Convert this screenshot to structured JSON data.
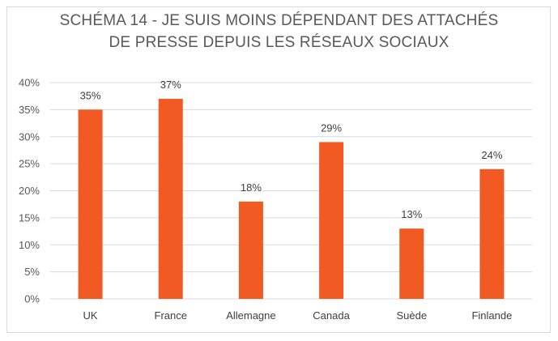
{
  "chart_data": {
    "type": "bar",
    "title_lines": [
      "SCHÉMA 14 - JE SUIS MOINS DÉPENDANT DES ATTACHÉS",
      "DE PRESSE DEPUIS LES RÉSEAUX SOCIAUX"
    ],
    "categories": [
      "UK",
      "France",
      "Allemagne",
      "Canada",
      "Suède",
      "Finlande"
    ],
    "values": [
      35,
      37,
      18,
      29,
      13,
      24
    ],
    "data_labels": [
      "35%",
      "37%",
      "18%",
      "29%",
      "13%",
      "24%"
    ],
    "y_ticks": [
      "0%",
      "5%",
      "10%",
      "15%",
      "20%",
      "25%",
      "30%",
      "35%",
      "40%"
    ],
    "ylim": [
      0,
      40
    ],
    "grid": true,
    "legend": "none",
    "bar_color": "#F15A22",
    "grid_color": "#D9D9D9"
  }
}
